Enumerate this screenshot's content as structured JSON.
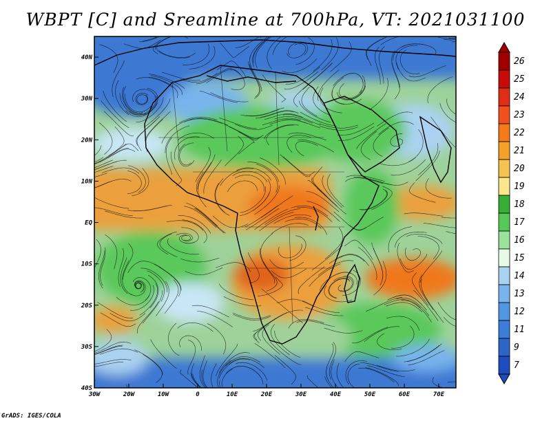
{
  "title": "WBPT [C] and Sreamline at 700hPa, VT: 2021031100",
  "credit": "GrADS: IGES/COLA",
  "map": {
    "lon_ticks": [
      "30W",
      "20W",
      "10W",
      "0",
      "10E",
      "20E",
      "30E",
      "40E",
      "50E",
      "60E",
      "70E"
    ],
    "lat_ticks": [
      "40N",
      "30N",
      "20N",
      "10N",
      "EQ",
      "10S",
      "20S",
      "30S",
      "40S"
    ],
    "lon_range": [
      -30,
      75
    ],
    "lat_range": [
      -40,
      45
    ]
  },
  "colorbar": {
    "labels": [
      "26",
      "25",
      "24",
      "23",
      "22",
      "21",
      "20",
      "19",
      "18",
      "17",
      "16",
      "15",
      "14",
      "13",
      "12",
      "11",
      "9",
      "7"
    ],
    "colors": [
      "#a00000",
      "#c80a0a",
      "#e02d18",
      "#f0501e",
      "#f57a18",
      "#f5a028",
      "#f5c350",
      "#fae68c",
      "#37af37",
      "#55c855",
      "#9be29b",
      "#e6fae6",
      "#aad2f0",
      "#78b4eb",
      "#5096e1",
      "#3c7dd7",
      "#2d64c8",
      "#1e4bbe"
    ]
  },
  "style": {
    "warm": "#eba03c",
    "green": "#5ac85a",
    "blue": "#3c78d2",
    "pale": "#c8e6f5"
  }
}
